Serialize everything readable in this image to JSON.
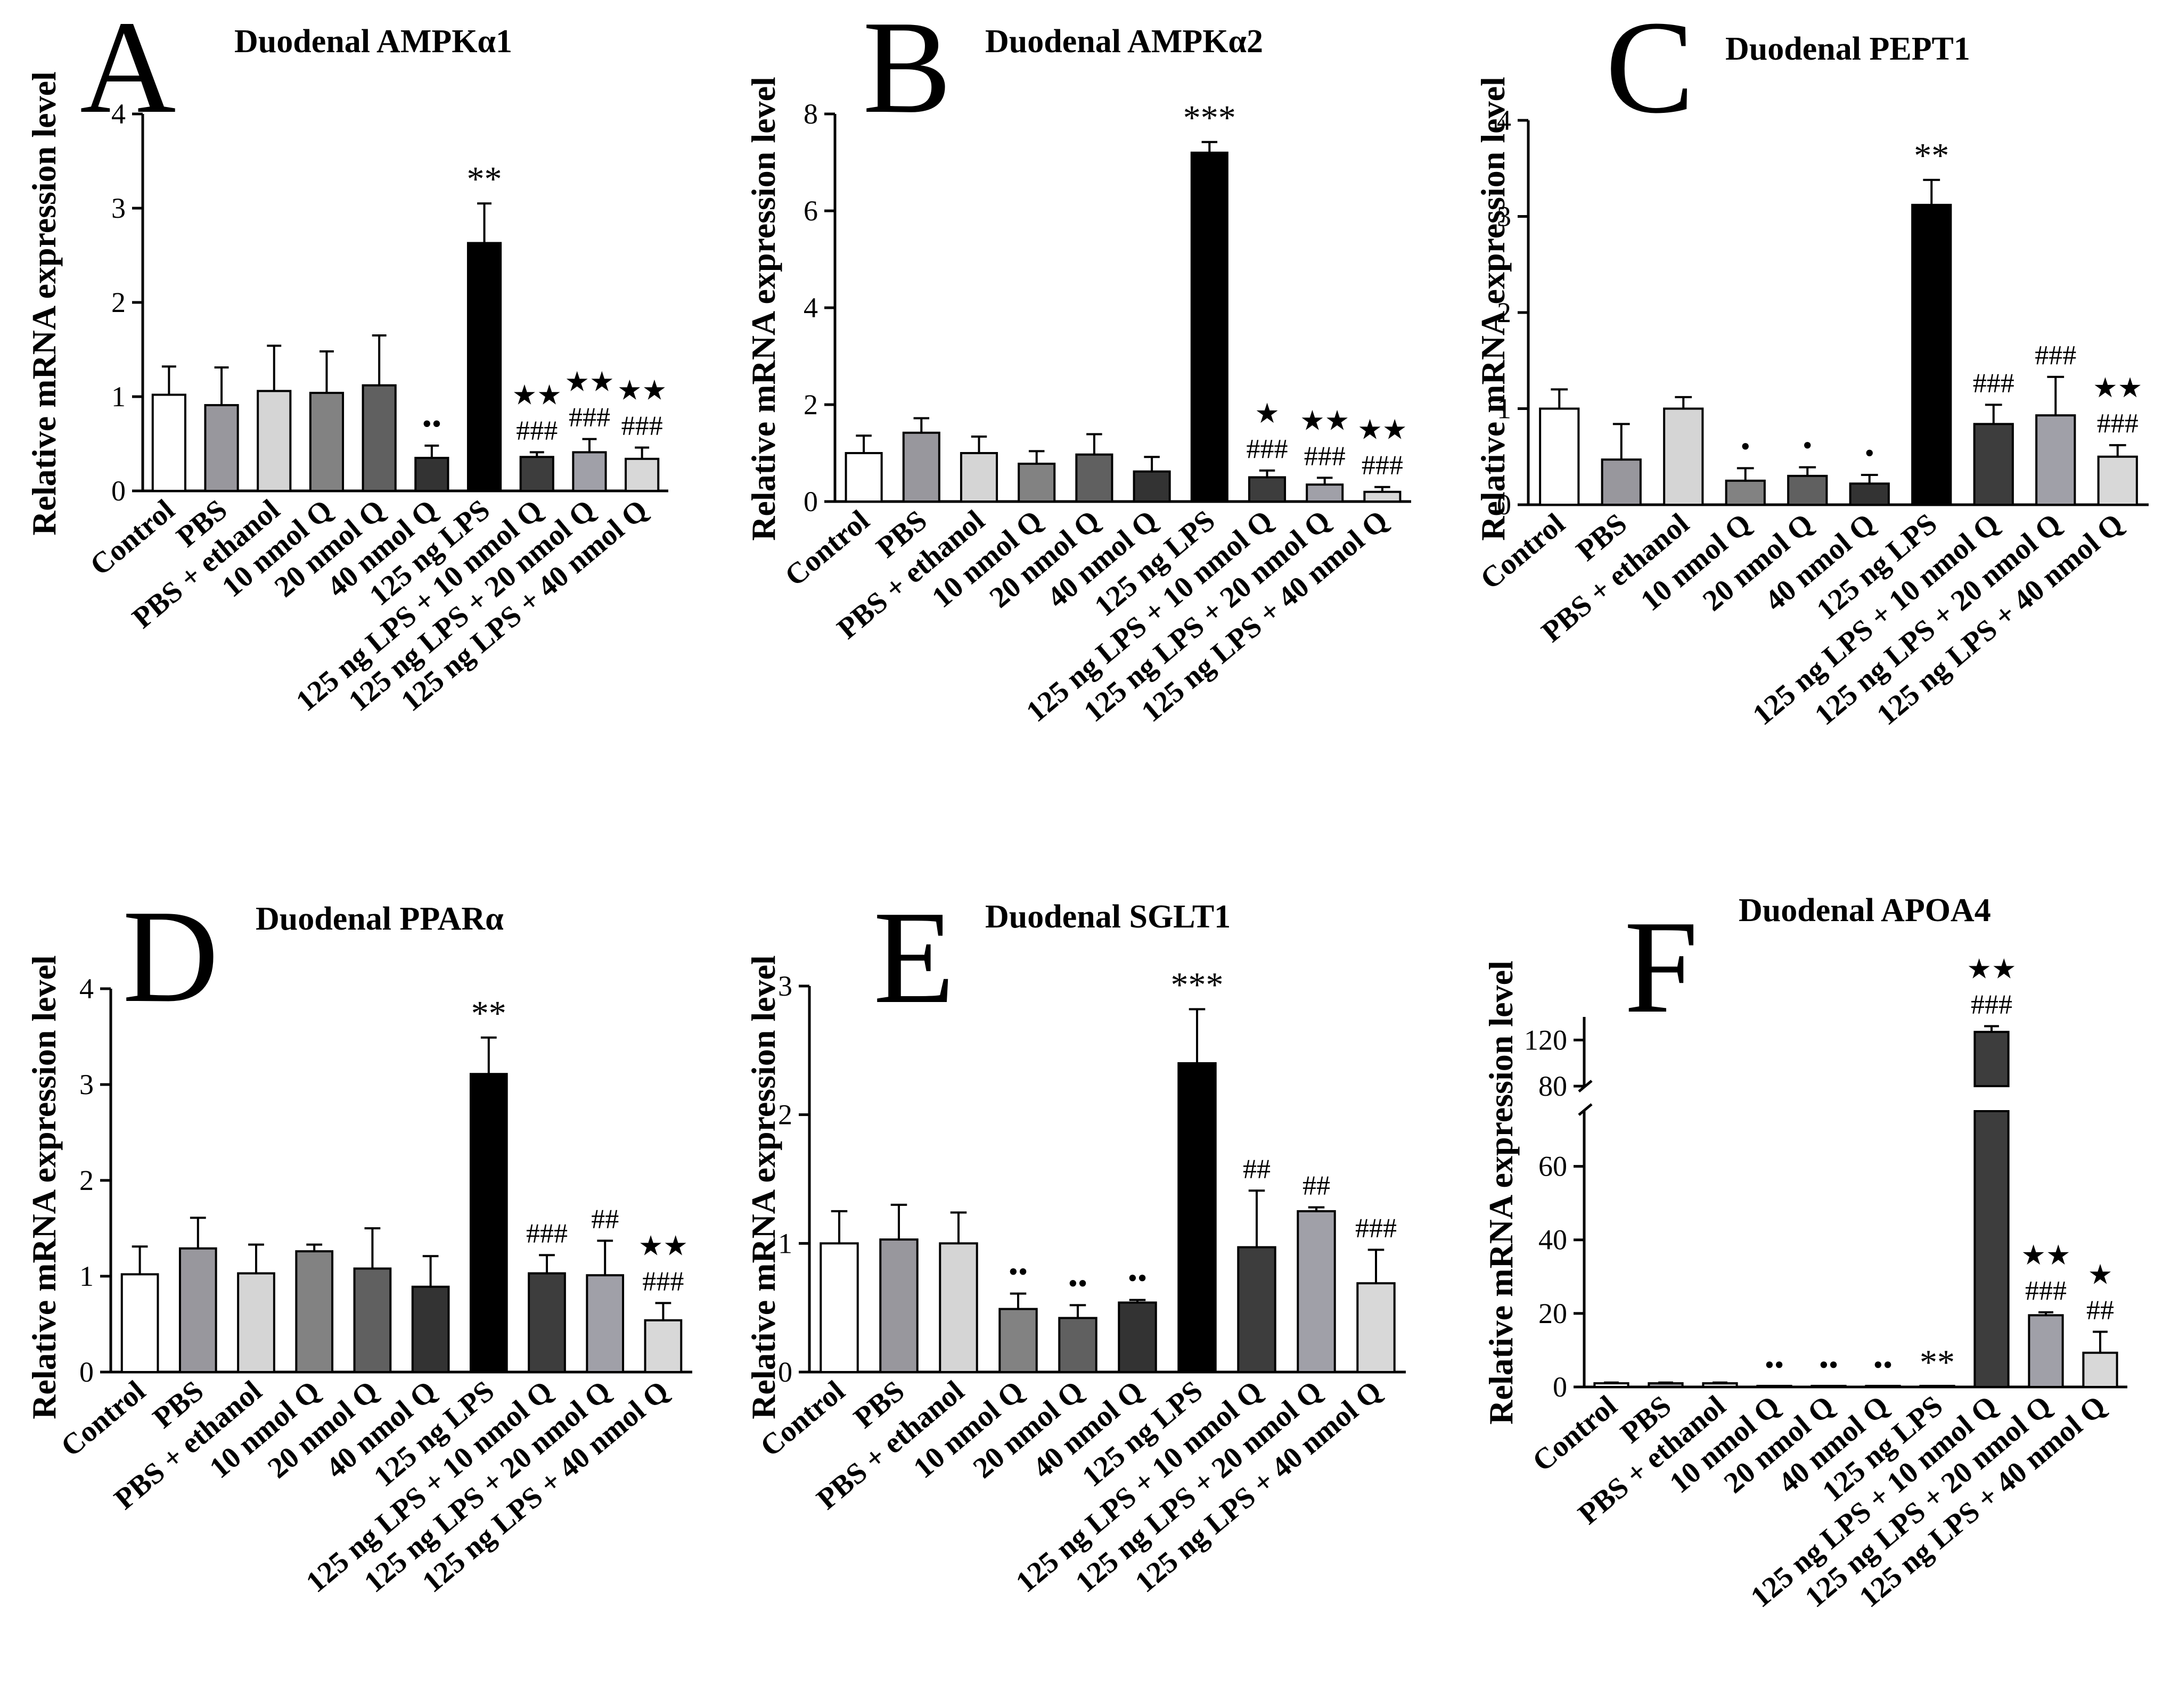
{
  "figure": {
    "y_axis_title": "Relative mRNA expression level"
  },
  "chart_data": [
    {
      "type": "bar",
      "panel": "A",
      "title": "Duodenal AMPKα1",
      "xlabel": "",
      "ylabel": "Relative mRNA expression level",
      "ylim": [
        0,
        4
      ],
      "yticks": [
        0,
        1,
        2,
        3,
        4
      ],
      "categories": [
        "Control",
        "PBS",
        "PBS + ethanol",
        "10 nmol Q",
        "20 nmol Q",
        "40 nmol Q",
        "125 ng LPS",
        "125 ng LPS + 10 nmol Q",
        "125 ng LPS + 20 nmol Q",
        "125 ng LPS + 40 nmol Q"
      ],
      "values": [
        1.02,
        0.91,
        1.06,
        1.04,
        1.12,
        0.35,
        2.63,
        0.36,
        0.41,
        0.34
      ],
      "errors": [
        0.3,
        0.4,
        0.48,
        0.44,
        0.53,
        0.13,
        0.42,
        0.05,
        0.14,
        0.12
      ],
      "colors": [
        "#ffffff",
        "#98979d",
        "#d5d5d5",
        "#828282",
        "#606060",
        "#333333",
        "#000000",
        "#3d3d3d",
        "#a0a0a8",
        "#d8d8d8"
      ],
      "annotations": [
        [
          "",
          "",
          "",
          "",
          "",
          "••",
          "**",
          "★★ ###",
          "★★ ###",
          "★★ ###"
        ]
      ]
    },
    {
      "type": "bar",
      "panel": "B",
      "title": "Duodenal AMPKα2",
      "xlabel": "",
      "ylabel": "Relative mRNA expression level",
      "ylim": [
        0,
        8
      ],
      "yticks": [
        0,
        2,
        4,
        6,
        8
      ],
      "categories": [
        "Control",
        "PBS",
        "PBS + ethanol",
        "10 nmol Q",
        "20 nmol Q",
        "40 nmol Q",
        "125 ng LPS",
        "125 ng LPS + 10 nmol Q",
        "125 ng LPS + 20 nmol Q",
        "125 ng LPS + 40 nmol Q"
      ],
      "values": [
        1.0,
        1.42,
        1.0,
        0.78,
        0.97,
        0.62,
        7.2,
        0.5,
        0.35,
        0.2
      ],
      "errors": [
        0.36,
        0.3,
        0.34,
        0.26,
        0.42,
        0.3,
        0.22,
        0.14,
        0.14,
        0.1
      ],
      "colors": [
        "#ffffff",
        "#98979d",
        "#d5d5d5",
        "#828282",
        "#606060",
        "#333333",
        "#000000",
        "#3d3d3d",
        "#a0a0a8",
        "#d8d8d8"
      ],
      "annotations": [
        [
          "",
          "",
          "",
          "",
          "",
          "",
          "***",
          "★ ###",
          "★★ ###",
          "★★ ###"
        ]
      ]
    },
    {
      "type": "bar",
      "panel": "C",
      "title": "Duodenal PEPT1",
      "xlabel": "",
      "ylabel": "Relative mRNA expression level",
      "ylim": [
        0,
        4
      ],
      "yticks": [
        0,
        1,
        2,
        3,
        4
      ],
      "categories": [
        "Control",
        "PBS",
        "PBS + ethanol",
        "10 nmol Q",
        "20 nmol Q",
        "40 nmol Q",
        "125 ng LPS",
        "125 ng LPS + 10 nmol Q",
        "125 ng LPS + 20 nmol Q",
        "125 ng LPS + 40 nmol Q"
      ],
      "values": [
        1.0,
        0.47,
        1.0,
        0.25,
        0.3,
        0.22,
        3.12,
        0.84,
        0.93,
        0.5
      ],
      "errors": [
        0.2,
        0.37,
        0.12,
        0.13,
        0.09,
        0.09,
        0.26,
        0.2,
        0.4,
        0.12
      ],
      "colors": [
        "#ffffff",
        "#98979d",
        "#d5d5d5",
        "#828282",
        "#606060",
        "#333333",
        "#000000",
        "#3d3d3d",
        "#a0a0a8",
        "#d8d8d8"
      ],
      "annotations": [
        [
          "",
          "",
          "",
          "•",
          "•",
          "•",
          "**",
          "###",
          "###",
          "★★ ###"
        ]
      ]
    },
    {
      "type": "bar",
      "panel": "D",
      "title": "Duodenal PPARα",
      "xlabel": "",
      "ylabel": "Relative mRNA expression level",
      "ylim": [
        0,
        4
      ],
      "yticks": [
        0,
        1,
        2,
        3,
        4
      ],
      "categories": [
        "Control",
        "PBS",
        "PBS + ethanol",
        "10 nmol Q",
        "20 nmol Q",
        "40 nmol Q",
        "125 ng LPS",
        "125 ng LPS + 10 nmol Q",
        "125 ng LPS + 20 nmol Q",
        "125 ng LPS + 40 nmol Q"
      ],
      "values": [
        1.02,
        1.29,
        1.03,
        1.26,
        1.08,
        0.89,
        3.11,
        1.03,
        1.01,
        0.54
      ],
      "errors": [
        0.29,
        0.32,
        0.3,
        0.07,
        0.42,
        0.32,
        0.38,
        0.19,
        0.36,
        0.18
      ],
      "colors": [
        "#ffffff",
        "#98979d",
        "#d5d5d5",
        "#828282",
        "#606060",
        "#333333",
        "#000000",
        "#3d3d3d",
        "#a0a0a8",
        "#d8d8d8"
      ],
      "annotations": [
        [
          "",
          "",
          "",
          "",
          "",
          "",
          "**",
          "###",
          "##",
          "★★ ###"
        ]
      ]
    },
    {
      "type": "bar",
      "panel": "E",
      "title": "Duodenal SGLT1",
      "xlabel": "",
      "ylabel": "Relative mRNA expression level",
      "ylim": [
        0,
        3
      ],
      "yticks": [
        0,
        1,
        2,
        3
      ],
      "categories": [
        "Control",
        "PBS",
        "PBS + ethanol",
        "10 nmol Q",
        "20 nmol Q",
        "40 nmol Q",
        "125 ng LPS",
        "125 ng LPS + 10 nmol Q",
        "125 ng LPS + 20 nmol Q",
        "125 ng LPS + 40 nmol Q"
      ],
      "values": [
        1.0,
        1.03,
        1.0,
        0.49,
        0.42,
        0.54,
        2.4,
        0.97,
        1.25,
        0.69
      ],
      "errors": [
        0.25,
        0.27,
        0.24,
        0.12,
        0.1,
        0.02,
        0.42,
        0.44,
        0.03,
        0.26
      ],
      "colors": [
        "#ffffff",
        "#98979d",
        "#d5d5d5",
        "#828282",
        "#606060",
        "#333333",
        "#000000",
        "#3d3d3d",
        "#a0a0a8",
        "#d8d8d8"
      ],
      "annotations": [
        [
          "",
          "",
          "",
          "••",
          "••",
          "••",
          "***",
          "##",
          "##",
          "###"
        ]
      ]
    },
    {
      "type": "bar",
      "panel": "F",
      "title": "Duodenal APOA4",
      "xlabel": "",
      "ylabel": "Relative mRNA expression level",
      "axis_break": true,
      "ylim_lower": [
        0,
        75
      ],
      "yticks_lower": [
        0,
        20,
        40,
        60
      ],
      "ylim_upper": [
        80,
        140
      ],
      "yticks_upper": [
        80,
        120
      ],
      "categories": [
        "Control",
        "PBS",
        "PBS + ethanol",
        "10 nmol Q",
        "20 nmol Q",
        "40 nmol Q",
        "125 ng LPS",
        "125 ng LPS + 10 nmol Q",
        "125 ng LPS + 20 nmol Q",
        "125 ng LPS + 40 nmol Q"
      ],
      "values": [
        1.0,
        1.0,
        1.0,
        0.1,
        0.1,
        0.1,
        0.1,
        127,
        19.5,
        9.3
      ],
      "errors": [
        0.2,
        0.2,
        0.2,
        0,
        0,
        0,
        0,
        5,
        0.8,
        5.7
      ],
      "colors": [
        "#ffffff",
        "#98979d",
        "#d5d5d5",
        "#828282",
        "#606060",
        "#333333",
        "#000000",
        "#3d3d3d",
        "#a0a0a8",
        "#d8d8d8"
      ],
      "annotations": [
        [
          "",
          "",
          "",
          "••",
          "••",
          "••",
          "**",
          "★★ ###",
          "★★ ###",
          "★ ##"
        ]
      ]
    }
  ]
}
